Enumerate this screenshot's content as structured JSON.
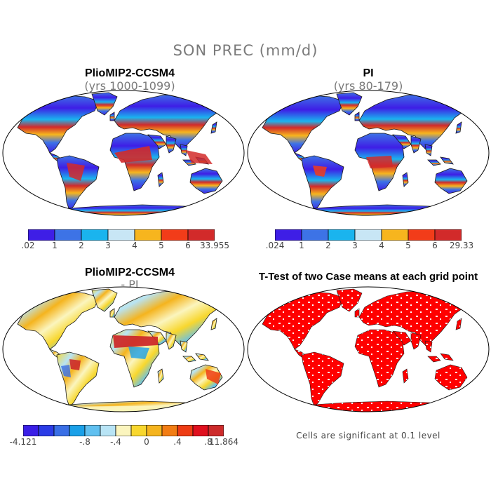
{
  "figure": {
    "title": "SON PREC (mm/d)",
    "colors": {
      "land_outline": "#1a1a1a",
      "ocean": "#ffffff",
      "map_border": "#000000",
      "significance_fill": "#ff0000"
    }
  },
  "panels": {
    "top_left": {
      "title": "PlioMIP2-CCSM4",
      "subtitle": "(yrs 1000-1099)",
      "colorbar": {
        "colors": [
          "#3e1ee6",
          "#3d73e6",
          "#1ab4ee",
          "#c8e6f5",
          "#f7b51e",
          "#f23c19",
          "#d22a2a"
        ],
        "labels": [
          ".02",
          "1",
          "2",
          "3",
          "4",
          "5",
          "6",
          "33.955"
        ]
      }
    },
    "top_right": {
      "title": "PI",
      "subtitle": "(yrs 80-179)",
      "colorbar": {
        "colors": [
          "#3e1ee6",
          "#3d73e6",
          "#1ab4ee",
          "#c8e6f5",
          "#f7b51e",
          "#f23c19",
          "#d22a2a"
        ],
        "labels": [
          ".024",
          "1",
          "2",
          "3",
          "4",
          "5",
          "6",
          "29.33"
        ]
      }
    },
    "bottom_left": {
      "title": "PlioMIP2-CCSM4",
      "subtitle": "- PI",
      "colorbar": {
        "colors": [
          "#3a1ee6",
          "#2b3ce6",
          "#3a6fe6",
          "#1aa0e8",
          "#60c0f0",
          "#b8e4f5",
          "#fbf5be",
          "#f8d72e",
          "#f5b41e",
          "#f27d14",
          "#ee3c14",
          "#e0101e",
          "#cc2a2a"
        ],
        "labels": [
          "-4.121",
          "-.8",
          "-.4",
          "0",
          ".4",
          ".8",
          "11.864"
        ]
      }
    },
    "bottom_right": {
      "title": "T-Test of two Case means at each grid point",
      "note": "Cells are significant at 0.1 level"
    }
  }
}
